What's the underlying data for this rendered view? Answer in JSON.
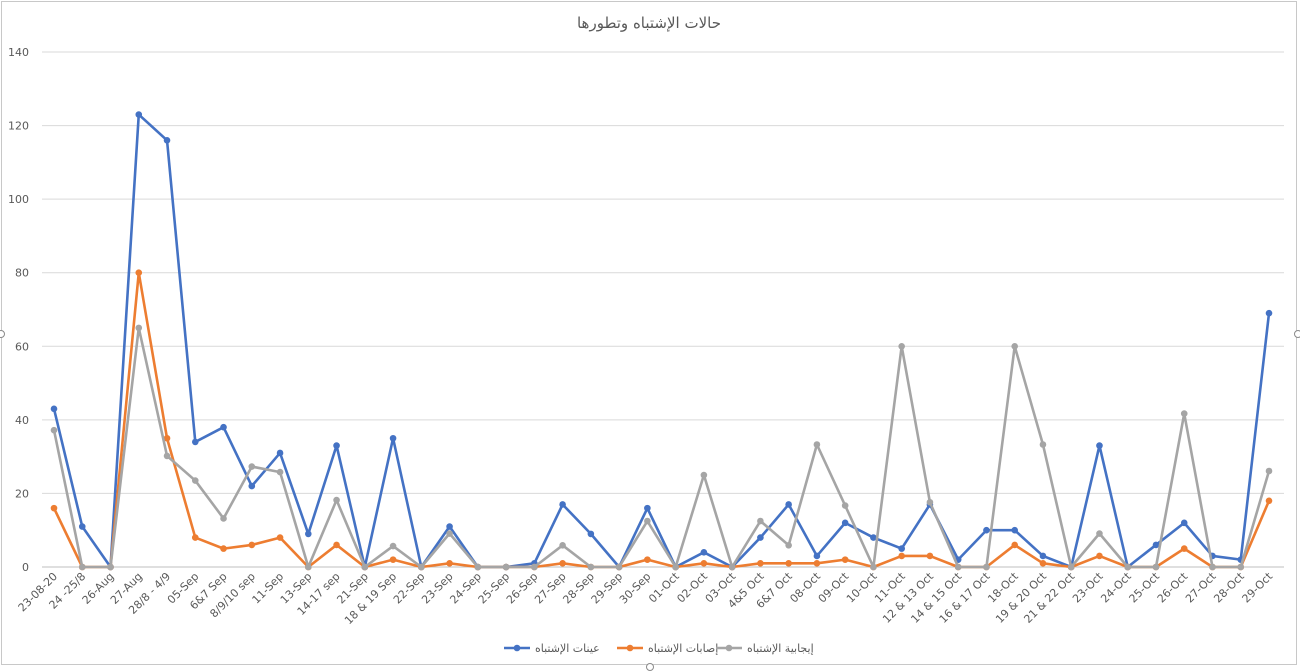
{
  "chart_data": {
    "type": "line",
    "title": "حالات الإشتباه وتطورها",
    "ylim": [
      0,
      140
    ],
    "yticks": [
      0,
      20,
      40,
      60,
      80,
      100,
      120,
      140
    ],
    "grid": true,
    "legend_position": "bottom",
    "categories": [
      "23-08-20",
      "24 -25/8",
      "26-Aug",
      "27-Aug",
      "28/8 - 4/9",
      "05-Sep",
      "6&7 Sep",
      "8/9/10 sep",
      "11-Sep",
      "13-Sep",
      "14-17 sep",
      "21-Sep",
      "18 & 19 Sep",
      "22-Sep",
      "23-Sep",
      "24-Sep",
      "25-Sep",
      "26-Sep",
      "27-Sep",
      "28-Sep",
      "29-Sep",
      "30-Sep",
      "01-Oct",
      "02-Oct",
      "03-Oct",
      "4&5 Oct",
      "6&7 Oct",
      "08-Oct",
      "09-Oct",
      "10-Oct",
      "11-Oct",
      "12 & 13 Oct",
      "14 & 15 Oct",
      "16 & 17 Oct",
      "18-Oct",
      "19 & 20 Oct",
      "21 & 22 Oct",
      "23-Oct",
      "24-Oct",
      "25-Oct",
      "26-Oct",
      "27-Oct",
      "28-Oct",
      "29-Oct"
    ],
    "series": [
      {
        "name": "عينات الإشتباه",
        "color": "#4472c4",
        "values": [
          43,
          11,
          0,
          123,
          116,
          34,
          38,
          22,
          31,
          9,
          33,
          0,
          35,
          0,
          11,
          0,
          0,
          1,
          17,
          9,
          0,
          16,
          0,
          4,
          0,
          8,
          17,
          3,
          12,
          8,
          5,
          17,
          2,
          10,
          10,
          3,
          0,
          33,
          0,
          6,
          12,
          3,
          2,
          69
        ]
      },
      {
        "name": "إصابات الإشتباه",
        "color": "#ed7d31",
        "values": [
          16,
          0,
          0,
          80,
          35,
          8,
          5,
          6,
          8,
          0,
          6,
          0,
          2,
          0,
          1,
          0,
          0,
          0,
          1,
          0,
          0,
          2,
          0,
          1,
          0,
          1,
          1,
          1,
          2,
          0,
          3,
          3,
          0,
          0,
          6,
          1,
          0,
          3,
          0,
          0,
          5,
          0,
          0,
          18
        ]
      },
      {
        "name": "إيجابية الإشتباه",
        "color": "#a5a5a5",
        "values": [
          37.2,
          0,
          0,
          65,
          30.2,
          23.5,
          13.2,
          27.3,
          25.8,
          0,
          18.2,
          0,
          5.7,
          0,
          9.1,
          0,
          0,
          0,
          5.9,
          0,
          0,
          12.5,
          0,
          25,
          0,
          12.5,
          5.9,
          33.3,
          16.7,
          0,
          60,
          17.6,
          0,
          0,
          60,
          33.3,
          0,
          9.1,
          0,
          0,
          41.7,
          0,
          0,
          26.1
        ]
      }
    ]
  }
}
